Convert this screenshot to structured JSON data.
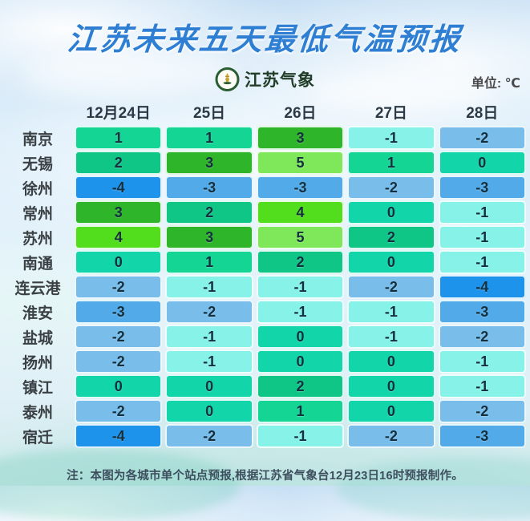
{
  "title": "江苏未来五天最低气温预报",
  "brand": {
    "logo_icon": "jiangsu-meteorology-badge",
    "name": "江苏气象"
  },
  "unit_label": "单位: ℃",
  "chart_data": {
    "type": "heatmap",
    "title": "江苏未来五天最低气温预报",
    "unit": "℃",
    "columns": [
      "12月24日",
      "25日",
      "26日",
      "27日",
      "28日"
    ],
    "rows": [
      {
        "city": "南京",
        "values": [
          1,
          1,
          3,
          -1,
          -2
        ]
      },
      {
        "city": "无锡",
        "values": [
          2,
          3,
          5,
          1,
          0
        ]
      },
      {
        "city": "徐州",
        "values": [
          -4,
          -3,
          -3,
          -2,
          -3
        ]
      },
      {
        "city": "常州",
        "values": [
          3,
          2,
          4,
          0,
          -1
        ]
      },
      {
        "city": "苏州",
        "values": [
          4,
          3,
          5,
          2,
          -1
        ]
      },
      {
        "city": "南通",
        "values": [
          0,
          1,
          2,
          0,
          -1
        ]
      },
      {
        "city": "连云港",
        "values": [
          -2,
          -1,
          -1,
          -2,
          -4
        ]
      },
      {
        "city": "淮安",
        "values": [
          -3,
          -2,
          -1,
          -1,
          -3
        ]
      },
      {
        "city": "盐城",
        "values": [
          -2,
          -1,
          0,
          -1,
          -2
        ]
      },
      {
        "city": "扬州",
        "values": [
          -2,
          -1,
          0,
          0,
          -1
        ]
      },
      {
        "city": "镇江",
        "values": [
          0,
          0,
          2,
          0,
          -1
        ]
      },
      {
        "city": "泰州",
        "values": [
          -2,
          0,
          1,
          0,
          -2
        ]
      },
      {
        "city": "宿迁",
        "values": [
          -4,
          -2,
          -1,
          -2,
          -3
        ]
      }
    ],
    "color_scale": {
      "5": "#7ee85a",
      "4": "#52de1c",
      "3": "#2eb52a",
      "2": "#0fc687",
      "1": "#15d595",
      "0": "#13d5aa",
      "-1": "#86f2e8",
      "-2": "#79bdeb",
      "-3": "#52abe8",
      "-4": "#1e93ec"
    },
    "legend_position": "none",
    "grid": false
  },
  "footer_note": "注：本图为各城市单个站点预报,根据江苏省气象台12月23日16时预报制作。",
  "colors": {
    "title_blue": "#2e7fd3",
    "header_text": "#2c3a46",
    "cell_text": "#142f3d",
    "note_text": "#3d4f5e",
    "logo_ring_green": "#2b5d33",
    "sky_top": "#c2ddf3"
  }
}
